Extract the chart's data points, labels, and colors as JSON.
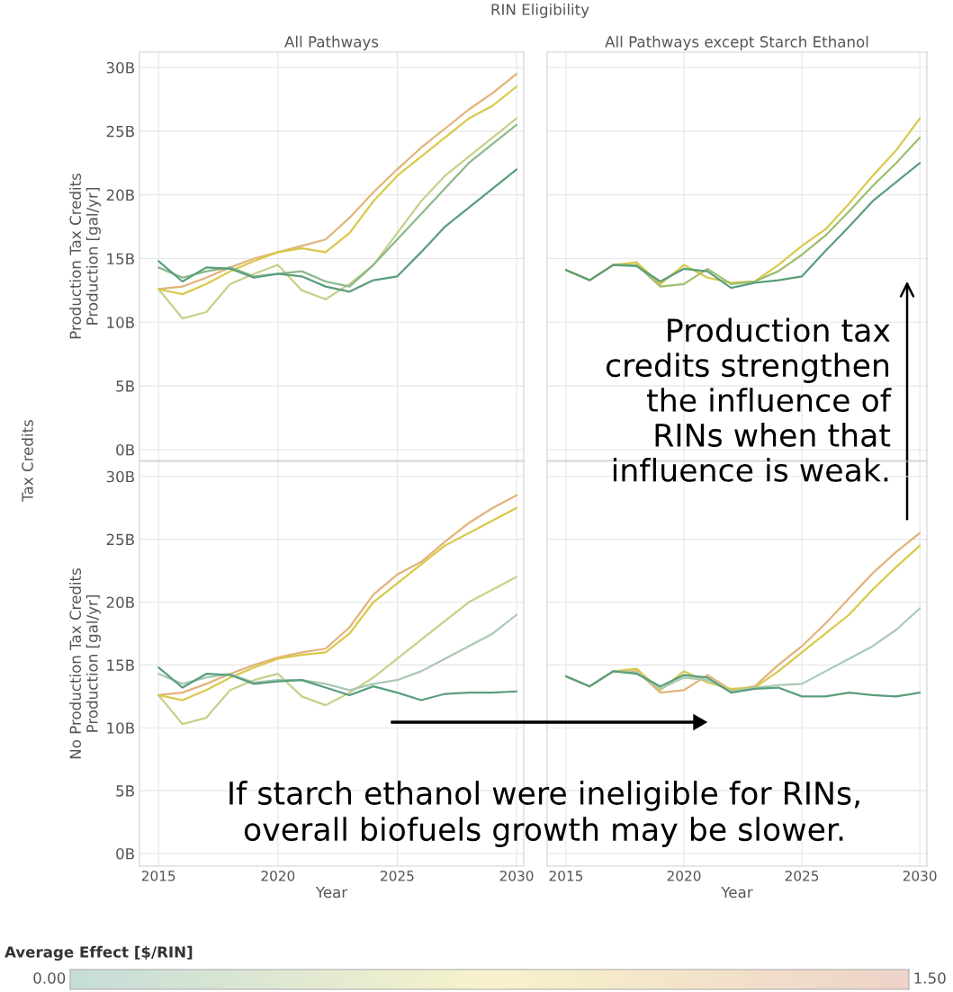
{
  "chart_data": [
    {
      "type": "line",
      "title": "All Pathways",
      "ylabel": "Production Tax Credits\nProduction [gal/yr]",
      "annotations": [
        "RIN Eligibility",
        "Tax Credits"
      ],
      "x": [
        2015,
        2016,
        2017,
        2018,
        2019,
        2020,
        2021,
        2022,
        2023,
        2024,
        2025,
        2026,
        2027,
        2028,
        2029,
        2030
      ],
      "xlim": [
        2014.2,
        2030.3
      ],
      "xticks": [
        {
          "value": 2015,
          "label": null
        },
        {
          "value": 2020,
          "label": null
        },
        {
          "value": 2025,
          "label": null
        },
        {
          "value": 2030,
          "label": null
        }
      ],
      "ylim": [
        -0.85,
        31.2
      ],
      "yticks": [
        {
          "value": 0,
          "label": "0B"
        },
        {
          "value": 5,
          "label": "5B"
        },
        {
          "value": 10,
          "label": "10B"
        },
        {
          "value": 15,
          "label": "15B"
        },
        {
          "value": 20,
          "label": "20B"
        },
        {
          "value": 25,
          "label": "25B"
        },
        {
          "value": 30,
          "label": "30B"
        }
      ],
      "grid": true,
      "tick_labels": "y",
      "series": [
        {
          "color": "#c8d08a",
          "values": [
            12.6,
            10.3,
            10.8,
            13,
            13.8,
            14.5,
            12.5,
            11.8,
            13,
            14.5,
            17,
            19.5,
            21.5,
            23,
            24.5,
            26
          ]
        },
        {
          "color": "#e3b37a",
          "values": [
            12.6,
            12.8,
            13.5,
            14.3,
            15.0,
            15.5,
            16,
            16.5,
            18.2,
            20.2,
            22,
            23.7,
            25.2,
            26.7,
            28,
            29.5
          ]
        },
        {
          "color": "#d9c94a",
          "values": [
            12.6,
            12.2,
            13.0,
            14.0,
            14.8,
            15.5,
            15.8,
            15.5,
            17,
            19.5,
            21.5,
            23,
            24.5,
            26,
            27,
            28.5
          ]
        },
        {
          "color": "#8ab98a",
          "values": [
            14.3,
            13.5,
            14.0,
            14.3,
            13.6,
            13.8,
            14.0,
            13.2,
            12.8,
            14.5,
            16.5,
            18.5,
            20.5,
            22.5,
            24.0,
            25.5
          ]
        },
        {
          "color": "#5a9e7c",
          "values": [
            14.8,
            13.2,
            14.3,
            14.2,
            13.5,
            13.8,
            13.6,
            12.8,
            12.4,
            13.3,
            13.6,
            15.5,
            17.5,
            19,
            20.5,
            22.0
          ]
        }
      ]
    },
    {
      "type": "line",
      "title": "All Pathways except Starch Ethanol",
      "annotations": [
        "Production tax\ncredits strengthen\nthe influence of\nRINs when that\ninfluence is weak."
      ],
      "x": [
        2015,
        2016,
        2017,
        2018,
        2019,
        2020,
        2021,
        2022,
        2023,
        2024,
        2025,
        2026,
        2027,
        2028,
        2029,
        2030
      ],
      "xlim": [
        2014.2,
        2030.3
      ],
      "xticks": [
        {
          "value": 2015,
          "label": null
        },
        {
          "value": 2020,
          "label": null
        },
        {
          "value": 2025,
          "label": null
        },
        {
          "value": 2030,
          "label": null
        }
      ],
      "ylim": [
        -0.85,
        31.2
      ],
      "yticks": [
        {
          "value": 0,
          "label": null
        },
        {
          "value": 5,
          "label": null
        },
        {
          "value": 10,
          "label": null
        },
        {
          "value": 15,
          "label": null
        },
        {
          "value": 20,
          "label": null
        },
        {
          "value": 25,
          "label": null
        },
        {
          "value": 30,
          "label": null
        }
      ],
      "grid": true,
      "tick_labels": false,
      "series": [
        {
          "color": "#d9c94a",
          "values": [
            14.1,
            13.3,
            14.5,
            14.7,
            13.0,
            14.5,
            13.5,
            13.1,
            13.2,
            14.5,
            16,
            17.3,
            19.3,
            21.5,
            23.5,
            26.0
          ]
        },
        {
          "color": "#9cbf6e",
          "values": [
            14.1,
            13.3,
            14.5,
            14.5,
            12.8,
            13,
            14.2,
            13,
            13.2,
            14,
            15.3,
            16.8,
            18.7,
            20.7,
            22.5,
            24.5
          ]
        },
        {
          "color": "#5a9e7c",
          "values": [
            14.1,
            13.3,
            14.5,
            14.4,
            13.2,
            14.2,
            14.0,
            12.7,
            13.1,
            13.3,
            13.6,
            15.6,
            17.5,
            19.5,
            21,
            22.5
          ]
        }
      ]
    },
    {
      "type": "line",
      "ylabel": "No Production Tax Credits\nProduction [gal/yr]",
      "xlabel": "Year",
      "annotations": [
        "If starch ethanol were ineligible for RINs,\noverall biofuels growth may be slower."
      ],
      "x": [
        2015,
        2016,
        2017,
        2018,
        2019,
        2020,
        2021,
        2022,
        2023,
        2024,
        2025,
        2026,
        2027,
        2028,
        2029,
        2030
      ],
      "xlim": [
        2014.2,
        2030.3
      ],
      "xticks": [
        2015,
        2020,
        2025,
        2030
      ],
      "ylim": [
        -1,
        31.2
      ],
      "yticks": [
        {
          "value": 0,
          "label": "0B"
        },
        {
          "value": 5,
          "label": "5B"
        },
        {
          "value": 10,
          "label": "10B"
        },
        {
          "value": 15,
          "label": "15B"
        },
        {
          "value": 20,
          "label": "20B"
        },
        {
          "value": 25,
          "label": "25B"
        },
        {
          "value": 30,
          "label": "30B"
        }
      ],
      "grid": true,
      "series": [
        {
          "color": "#c8d08a",
          "values": [
            12.6,
            10.3,
            10.8,
            13,
            13.8,
            14.3,
            12.5,
            11.8,
            12.8,
            14,
            15.5,
            17,
            18.5,
            20,
            21,
            22
          ]
        },
        {
          "color": "#e3b37a",
          "values": [
            12.6,
            12.8,
            13.5,
            14.3,
            15,
            15.6,
            16,
            16.3,
            18,
            20.6,
            22.2,
            23.2,
            24.8,
            26.3,
            27.5,
            28.5
          ]
        },
        {
          "color": "#d9c94a",
          "values": [
            12.6,
            12.2,
            13,
            14,
            14.8,
            15.5,
            15.8,
            16,
            17.5,
            20,
            21.5,
            23,
            24.5,
            25.5,
            26.5,
            27.5
          ]
        },
        {
          "color": "#a9c9b4",
          "values": [
            14.3,
            13.5,
            14.0,
            14.3,
            13.6,
            13.8,
            13.8,
            13.5,
            13,
            13.5,
            13.8,
            14.5,
            15.5,
            16.5,
            17.5,
            19
          ]
        },
        {
          "color": "#5a9e7c",
          "values": [
            14.8,
            13.2,
            14.3,
            14.2,
            13.5,
            13.7,
            13.8,
            13.2,
            12.6,
            13.3,
            12.8,
            12.2,
            12.7,
            12.8,
            12.8,
            12.9
          ]
        }
      ]
    },
    {
      "type": "line",
      "xlabel": "Year",
      "clabel": "Average Effect [$/RIN]",
      "clim": [
        0,
        1.5
      ],
      "cticks": [
        {
          "value": 0,
          "label": "0.00"
        },
        {
          "value": 1.5,
          "label": "1.50"
        }
      ],
      "x": [
        2015,
        2016,
        2017,
        2018,
        2019,
        2020,
        2021,
        2022,
        2023,
        2024,
        2025,
        2026,
        2027,
        2028,
        2029,
        2030
      ],
      "xlim": [
        2014.2,
        2030.3
      ],
      "xticks": [
        2015,
        2020,
        2025,
        2030
      ],
      "ylim": [
        -1,
        31.2
      ],
      "yticks": [
        {
          "value": 0,
          "label": null
        },
        {
          "value": 5,
          "label": null
        },
        {
          "value": 10,
          "label": null
        },
        {
          "value": 15,
          "label": null
        },
        {
          "value": 20,
          "label": null
        },
        {
          "value": 25,
          "label": null
        },
        {
          "value": 30,
          "label": null
        }
      ],
      "grid": true,
      "tick_labels": "x",
      "series": [
        {
          "color": "#e3b37a",
          "values": [
            14.1,
            13.3,
            14.5,
            14.5,
            12.8,
            13.0,
            14.2,
            13.0,
            13.3,
            15,
            16.5,
            18.3,
            20.3,
            22.3,
            24,
            25.5
          ]
        },
        {
          "color": "#d9c94a",
          "values": [
            14.1,
            13.3,
            14.5,
            14.7,
            13.0,
            14.5,
            13.6,
            13.1,
            13.2,
            14.5,
            16,
            17.5,
            19,
            21,
            22.8,
            24.5
          ]
        },
        {
          "color": "#a9c9b4",
          "values": [
            14.1,
            13.3,
            14.5,
            14.4,
            13.1,
            14.0,
            13.8,
            12.9,
            13.2,
            13.4,
            13.5,
            14.5,
            15.5,
            16.5,
            17.8,
            19.5
          ]
        },
        {
          "color": "#5a9e7c",
          "values": [
            14.1,
            13.3,
            14.5,
            14.3,
            13.3,
            14.2,
            14.0,
            12.8,
            13.1,
            13.2,
            12.5,
            12.5,
            12.8,
            12.6,
            12.5,
            12.8
          ]
        }
      ]
    }
  ]
}
